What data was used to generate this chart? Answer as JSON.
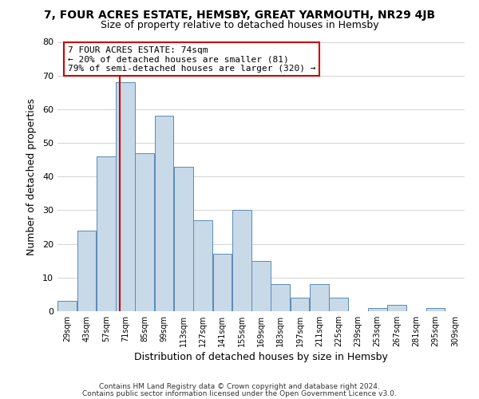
{
  "title": "7, FOUR ACRES ESTATE, HEMSBY, GREAT YARMOUTH, NR29 4JB",
  "subtitle": "Size of property relative to detached houses in Hemsby",
  "xlabel": "Distribution of detached houses by size in Hemsby",
  "ylabel": "Number of detached properties",
  "footer_line1": "Contains HM Land Registry data © Crown copyright and database right 2024.",
  "footer_line2": "Contains public sector information licensed under the Open Government Licence v3.0.",
  "bin_labels": [
    "29sqm",
    "43sqm",
    "57sqm",
    "71sqm",
    "85sqm",
    "99sqm",
    "113sqm",
    "127sqm",
    "141sqm",
    "155sqm",
    "169sqm",
    "183sqm",
    "197sqm",
    "211sqm",
    "225sqm",
    "239sqm",
    "253sqm",
    "267sqm",
    "281sqm",
    "295sqm",
    "309sqm"
  ],
  "bin_edges": [
    29,
    43,
    57,
    71,
    85,
    99,
    113,
    127,
    141,
    155,
    169,
    183,
    197,
    211,
    225,
    239,
    253,
    267,
    281,
    295,
    309
  ],
  "counts": [
    3,
    24,
    46,
    68,
    47,
    58,
    43,
    27,
    17,
    30,
    15,
    8,
    4,
    8,
    4,
    0,
    1,
    2,
    0,
    1
  ],
  "bar_color": "#c8d9e8",
  "bar_edge_color": "#5a8ab5",
  "vline_x": 74,
  "vline_color": "#cc0000",
  "annotation_line1": "7 FOUR ACRES ESTATE: 74sqm",
  "annotation_line2": "← 20% of detached houses are smaller (81)",
  "annotation_line3": "79% of semi-detached houses are larger (320) →",
  "annotation_box_edgecolor": "#cc0000",
  "annotation_box_facecolor": "#ffffff",
  "ylim": [
    0,
    80
  ],
  "yticks": [
    0,
    10,
    20,
    30,
    40,
    50,
    60,
    70,
    80
  ],
  "background_color": "#ffffff",
  "grid_color": "#cccccc",
  "title_fontsize": 10,
  "subtitle_fontsize": 9,
  "xlabel_fontsize": 9,
  "ylabel_fontsize": 9,
  "xtick_fontsize": 7,
  "ytick_fontsize": 8,
  "annotation_fontsize": 8,
  "footer_fontsize": 6.5
}
